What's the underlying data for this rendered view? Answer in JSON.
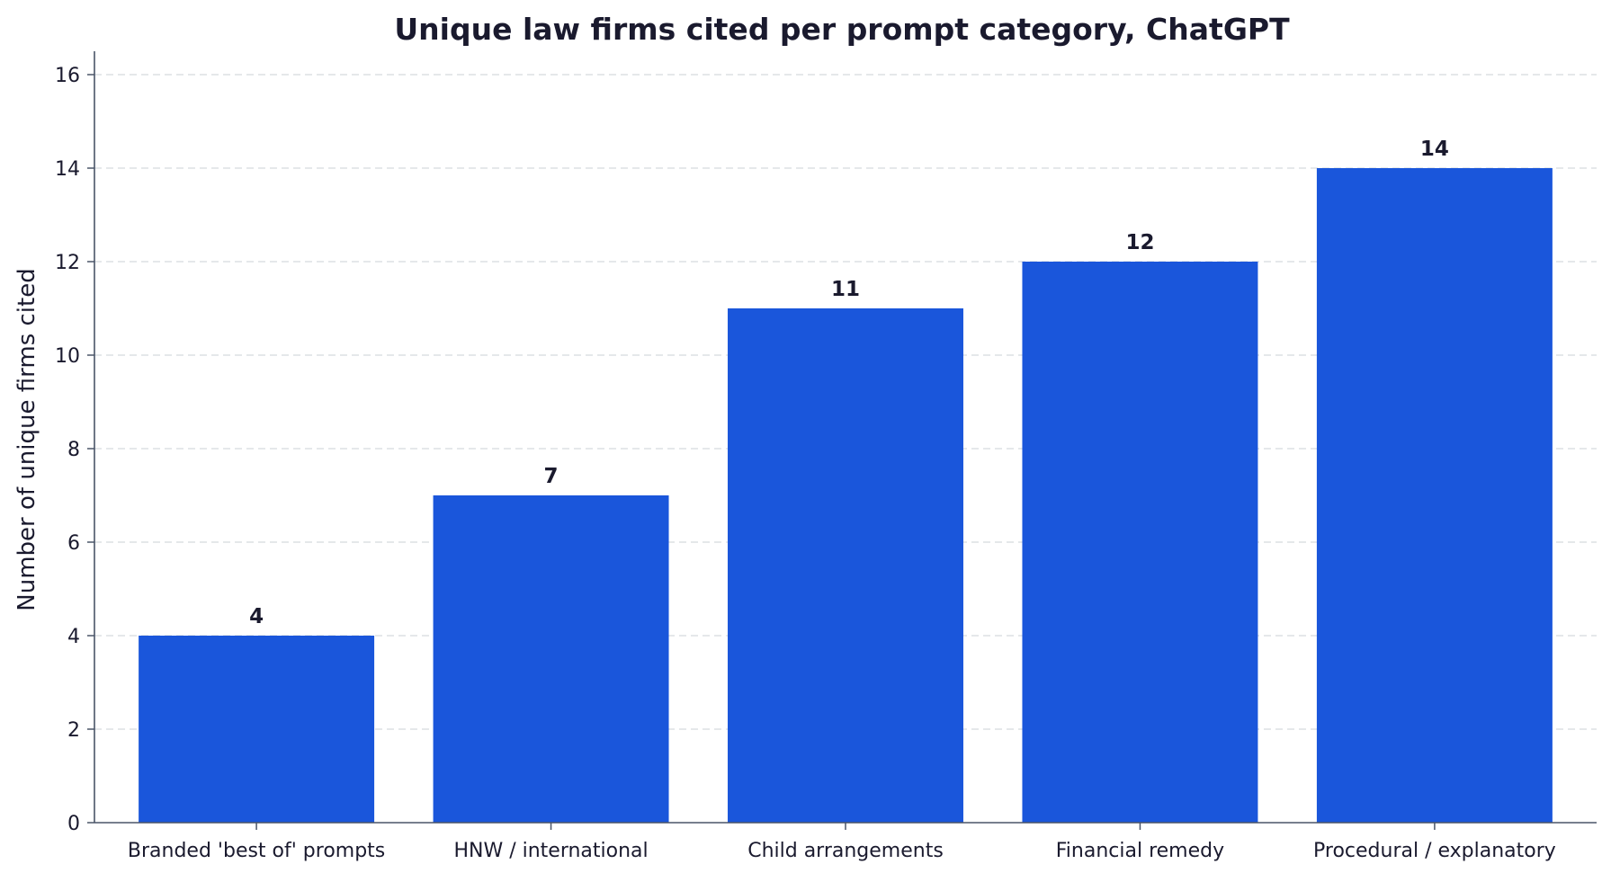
{
  "chart_data": {
    "type": "bar",
    "title": "Unique law firms cited per prompt category, ChatGPT",
    "xlabel": "",
    "ylabel": "Number of unique firms cited",
    "categories": [
      "Branded 'best of' prompts",
      "HNW / international",
      "Child arrangements",
      "Financial remedy",
      "Procedural / explanatory"
    ],
    "values": [
      4,
      7,
      11,
      12,
      14
    ],
    "ylim": [
      0,
      16.5
    ],
    "yticks": [
      0,
      2,
      4,
      6,
      8,
      10,
      12,
      14,
      16
    ],
    "grid": true,
    "bar_color": "#1a56db"
  }
}
